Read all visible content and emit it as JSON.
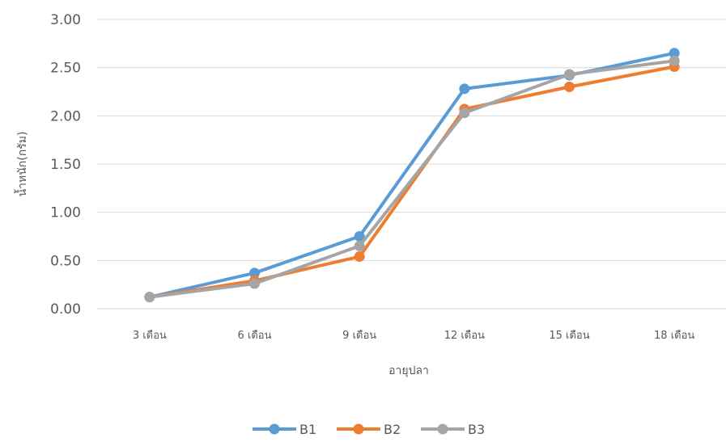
{
  "chart_data": {
    "type": "line",
    "title": "",
    "xlabel": "อายุปลา",
    "ylabel": "น้ำหนัก(กรัม)",
    "categories": [
      "3 เดือน",
      "6 เดือน",
      "9 เดือน",
      "12 เดือน",
      "15 เดือน",
      "18 เดือน"
    ],
    "yticks": [
      "0.00",
      "0.50",
      "1.00",
      "1.50",
      "2.00",
      "2.50",
      "3.00"
    ],
    "ylim": [
      0,
      3
    ],
    "grid": true,
    "legend_position": "bottom",
    "series": [
      {
        "name": "B1",
        "color": "#5B9BD5",
        "values": [
          0.12,
          0.37,
          0.75,
          2.28,
          2.42,
          2.65
        ]
      },
      {
        "name": "B2",
        "color": "#ED7D31",
        "values": [
          0.12,
          0.29,
          0.54,
          2.07,
          2.3,
          2.51
        ]
      },
      {
        "name": "B3",
        "color": "#A5A5A5",
        "values": [
          0.12,
          0.26,
          0.65,
          2.03,
          2.43,
          2.57
        ]
      }
    ]
  }
}
